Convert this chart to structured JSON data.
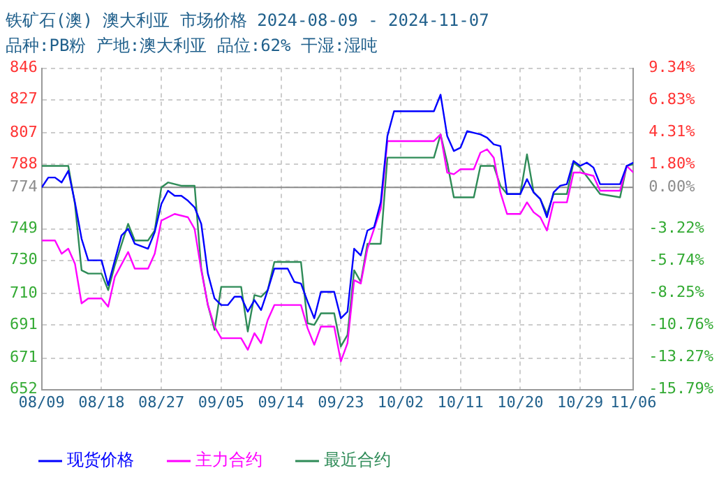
{
  "chart_data": {
    "type": "line",
    "title": "铁矿石(澳) 澳大利亚 市场价格 2024-08-09 - 2024-11-07",
    "subtitle": "品种:PB粉 产地:澳大利亚 品位:62% 干湿:湿吨",
    "xlim": [
      "2024-08-09",
      "2024-11-06"
    ],
    "xticks": [
      {
        "value": "2024-08-09",
        "label": "08/09"
      },
      {
        "value": "2024-08-18",
        "label": "08/18"
      },
      {
        "value": "2024-08-27",
        "label": "08/27"
      },
      {
        "value": "2024-09-05",
        "label": "09/05"
      },
      {
        "value": "2024-09-14",
        "label": "09/14"
      },
      {
        "value": "2024-09-23",
        "label": "09/23"
      },
      {
        "value": "2024-10-02",
        "label": "10/02"
      },
      {
        "value": "2024-10-11",
        "label": "10/11"
      },
      {
        "value": "2024-10-20",
        "label": "10/20"
      },
      {
        "value": "2024-10-29",
        "label": "10/29"
      },
      {
        "value": "2024-11-06",
        "label": "11/06"
      }
    ],
    "ylim": [
      652,
      846
    ],
    "yticks": [
      652,
      671,
      691,
      710,
      730,
      749,
      774,
      788,
      807,
      827,
      846
    ],
    "y2lim": [
      -15.79,
      9.34
    ],
    "y2ticks": [
      {
        "value": -15.79,
        "label": "-15.79%"
      },
      {
        "value": -13.27,
        "label": "-13.27%"
      },
      {
        "value": -10.76,
        "label": "-10.76%"
      },
      {
        "value": -8.25,
        "label": "-8.25%"
      },
      {
        "value": -5.74,
        "label": "-5.74%"
      },
      {
        "value": -3.22,
        "label": "-3.22%"
      },
      {
        "value": 0,
        "label": "0.00%"
      },
      {
        "value": 1.8,
        "label": "1.80%"
      },
      {
        "value": 4.31,
        "label": "4.31%"
      },
      {
        "value": 6.83,
        "label": "6.83%"
      },
      {
        "value": 9.34,
        "label": "9.34%"
      }
    ],
    "ref_lines": [
      {
        "axis": "y",
        "value": 774,
        "color": "#8c8c8c"
      }
    ],
    "grid": true,
    "legend": "bottom",
    "marker": "none",
    "line_style": "solid",
    "series": [
      {
        "name": "现货价格",
        "color": "#0000ff",
        "x": [
          "2024-08-09",
          "2024-08-10",
          "2024-08-11",
          "2024-08-12",
          "2024-08-13",
          "2024-08-14",
          "2024-08-15",
          "2024-08-16",
          "2024-08-18",
          "2024-08-19",
          "2024-08-20",
          "2024-08-21",
          "2024-08-22",
          "2024-08-23",
          "2024-08-25",
          "2024-08-26",
          "2024-08-27",
          "2024-08-28",
          "2024-08-29",
          "2024-08-30",
          "2024-08-31",
          "2024-09-01",
          "2024-09-02",
          "2024-09-03",
          "2024-09-04",
          "2024-09-05",
          "2024-09-06",
          "2024-09-07",
          "2024-09-08",
          "2024-09-09",
          "2024-09-10",
          "2024-09-11",
          "2024-09-12",
          "2024-09-13",
          "2024-09-15",
          "2024-09-16",
          "2024-09-17",
          "2024-09-18",
          "2024-09-19",
          "2024-09-20",
          "2024-09-22",
          "2024-09-23",
          "2024-09-24",
          "2024-09-25",
          "2024-09-26",
          "2024-09-27",
          "2024-09-28",
          "2024-09-29",
          "2024-09-30",
          "2024-10-01",
          "2024-10-07",
          "2024-10-08",
          "2024-10-09",
          "2024-10-10",
          "2024-10-11",
          "2024-10-12",
          "2024-10-13",
          "2024-10-14",
          "2024-10-15",
          "2024-10-16",
          "2024-10-17",
          "2024-10-18",
          "2024-10-20",
          "2024-10-21",
          "2024-10-22",
          "2024-10-23",
          "2024-10-24",
          "2024-10-25",
          "2024-10-26",
          "2024-10-27",
          "2024-10-28",
          "2024-10-29",
          "2024-10-30",
          "2024-10-31",
          "2024-11-01",
          "2024-11-04",
          "2024-11-05",
          "2024-11-06"
        ],
        "values": [
          774,
          780,
          780,
          777,
          784,
          765,
          743,
          730,
          730,
          715,
          730,
          745,
          749,
          740,
          737,
          747,
          764,
          772,
          769,
          769,
          766,
          762,
          752,
          722,
          707,
          703,
          703,
          708,
          708,
          699,
          706,
          700,
          712,
          725,
          725,
          717,
          716,
          705,
          695,
          711,
          711,
          695,
          699,
          737,
          733,
          748,
          750,
          765,
          805,
          820,
          820,
          830,
          805,
          796,
          798,
          808,
          807,
          806,
          804,
          800,
          799,
          770,
          770,
          779,
          771,
          767,
          756,
          771,
          775,
          776,
          790,
          787,
          789,
          786,
          776,
          776,
          787,
          789
        ]
      },
      {
        "name": "主力合约",
        "color": "#ff00ff",
        "x": [
          "2024-08-09",
          "2024-08-11",
          "2024-08-12",
          "2024-08-13",
          "2024-08-14",
          "2024-08-15",
          "2024-08-16",
          "2024-08-18",
          "2024-08-19",
          "2024-08-20",
          "2024-08-22",
          "2024-08-23",
          "2024-08-25",
          "2024-08-26",
          "2024-08-27",
          "2024-08-29",
          "2024-08-31",
          "2024-09-01",
          "2024-09-02",
          "2024-09-03",
          "2024-09-04",
          "2024-09-05",
          "2024-09-08",
          "2024-09-09",
          "2024-09-10",
          "2024-09-11",
          "2024-09-12",
          "2024-09-13",
          "2024-09-17",
          "2024-09-18",
          "2024-09-19",
          "2024-09-20",
          "2024-09-22",
          "2024-09-23",
          "2024-09-24",
          "2024-09-25",
          "2024-09-26",
          "2024-09-27",
          "2024-09-28",
          "2024-09-29",
          "2024-09-30",
          "2024-10-07",
          "2024-10-08",
          "2024-10-09",
          "2024-10-10",
          "2024-10-11",
          "2024-10-13",
          "2024-10-14",
          "2024-10-15",
          "2024-10-16",
          "2024-10-17",
          "2024-10-18",
          "2024-10-20",
          "2024-10-21",
          "2024-10-22",
          "2024-10-23",
          "2024-10-24",
          "2024-10-25",
          "2024-10-27",
          "2024-10-28",
          "2024-10-29",
          "2024-10-31",
          "2024-11-01",
          "2024-11-04",
          "2024-11-05",
          "2024-11-06"
        ],
        "values": [
          742,
          742,
          734,
          737,
          728,
          704,
          707,
          707,
          702,
          720,
          735,
          725,
          725,
          734,
          754,
          758,
          756,
          749,
          724,
          703,
          690,
          683,
          683,
          676,
          686,
          680,
          694,
          703,
          703,
          689,
          679,
          690,
          690,
          669,
          680,
          718,
          716,
          737,
          749,
          761,
          802,
          802,
          806,
          783,
          782,
          785,
          785,
          795,
          797,
          792,
          771,
          758,
          758,
          765,
          759,
          756,
          748,
          765,
          765,
          783,
          783,
          781,
          772,
          772,
          787,
          783
        ]
      },
      {
        "name": "最近合约",
        "color": "#2e8b57",
        "x": [
          "2024-08-09",
          "2024-08-13",
          "2024-08-14",
          "2024-08-15",
          "2024-08-16",
          "2024-08-18",
          "2024-08-19",
          "2024-08-20",
          "2024-08-22",
          "2024-08-23",
          "2024-08-25",
          "2024-08-26",
          "2024-08-27",
          "2024-08-28",
          "2024-08-30",
          "2024-09-01",
          "2024-09-02",
          "2024-09-03",
          "2024-09-04",
          "2024-09-05",
          "2024-09-08",
          "2024-09-09",
          "2024-09-10",
          "2024-09-11",
          "2024-09-12",
          "2024-09-13",
          "2024-09-17",
          "2024-09-18",
          "2024-09-19",
          "2024-09-20",
          "2024-09-22",
          "2024-09-23",
          "2024-09-24",
          "2024-09-25",
          "2024-09-26",
          "2024-09-27",
          "2024-09-29",
          "2024-09-30",
          "2024-10-07",
          "2024-10-08",
          "2024-10-09",
          "2024-10-10",
          "2024-10-13",
          "2024-10-14",
          "2024-10-16",
          "2024-10-17",
          "2024-10-18",
          "2024-10-20",
          "2024-10-21",
          "2024-10-22",
          "2024-10-23",
          "2024-10-24",
          "2024-10-25",
          "2024-10-27",
          "2024-10-28",
          "2024-10-29",
          "2024-11-01",
          "2024-11-04",
          "2024-11-05",
          "2024-11-06"
        ],
        "values": [
          787,
          787,
          764,
          724,
          722,
          722,
          712,
          727,
          752,
          742,
          742,
          748,
          774,
          777,
          775,
          775,
          725,
          703,
          688,
          714,
          714,
          687,
          709,
          708,
          712,
          729,
          729,
          692,
          691,
          698,
          698,
          678,
          685,
          724,
          717,
          740,
          740,
          792,
          792,
          806,
          789,
          768,
          768,
          787,
          787,
          775,
          770,
          770,
          794,
          771,
          767,
          758,
          770,
          770,
          789,
          786,
          770,
          768,
          787,
          788
        ]
      }
    ]
  }
}
